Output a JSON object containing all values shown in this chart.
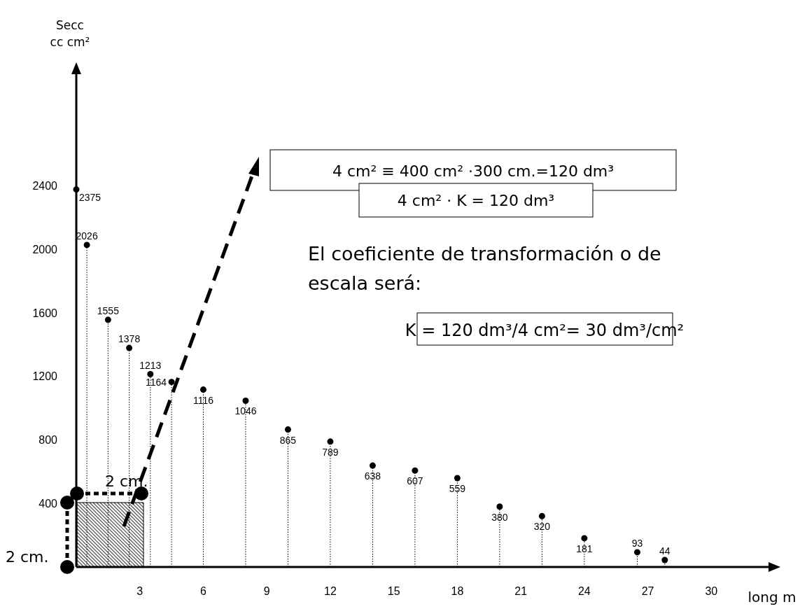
{
  "chart_data": {
    "type": "lollipop",
    "xlabel": "long m",
    "ylabel": "Secc\ncc cm²",
    "x": [
      0,
      0.5,
      1.5,
      2.5,
      3.5,
      4.5,
      6,
      8,
      10,
      12,
      14,
      16,
      18,
      20,
      22,
      24,
      26.5,
      27.8
    ],
    "values": [
      2375,
      2026,
      1555,
      1378,
      1213,
      1164,
      1116,
      1046,
      865,
      789,
      638,
      607,
      559,
      380,
      320,
      181,
      93,
      44
    ],
    "color": "#000000",
    "marker": "circle",
    "line_style": "dotted",
    "data_labels": true,
    "xlim": [
      0,
      32.7
    ],
    "xticks": [
      3,
      6,
      9,
      12,
      15,
      18,
      21,
      24,
      27,
      30
    ],
    "ylim": [
      0,
      3100
    ],
    "yticks": [
      400,
      800,
      1200,
      1600,
      2000,
      2400
    ],
    "annotations": [
      "4 cm² ≡ 400 cm² ·300 cm.=120 dm³",
      "4 cm² · K = 120 dm³",
      "El coeficiente de transformación o de escala será:",
      "K = 120 dm³/4 cm²= 30 dm³/cm²",
      "2 cm.",
      "2 cm."
    ]
  }
}
